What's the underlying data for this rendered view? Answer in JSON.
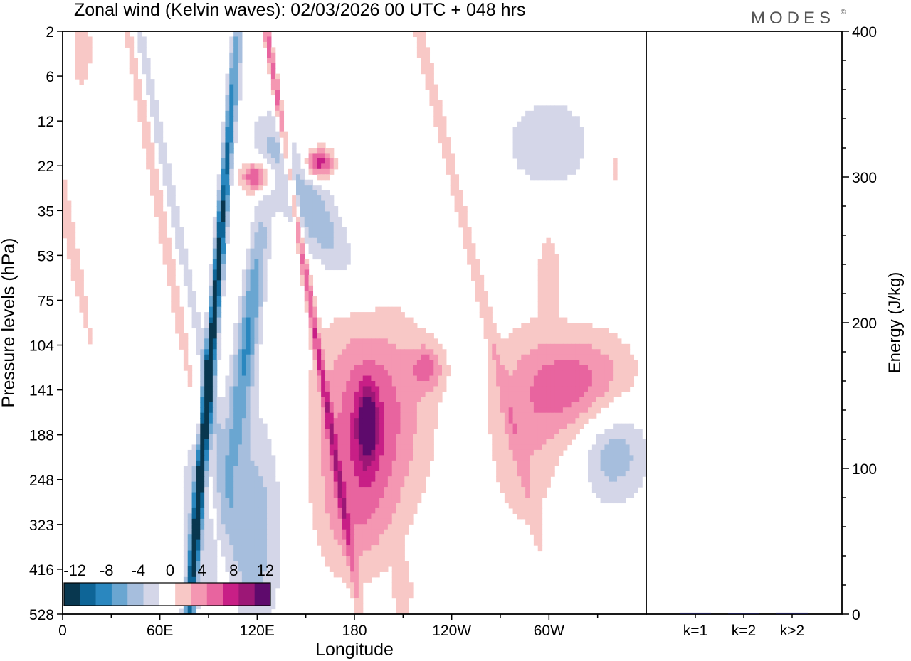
{
  "header": {
    "title": "Zonal wind (Kelvin waves):  02/03/2026  00 UTC  + 048 hrs",
    "logo": "MODES",
    "logo_mark": "©"
  },
  "colors": {
    "neg": [
      "#08374f",
      "#0e6597",
      "#2a87bf",
      "#6aa6d1",
      "#a6bedd",
      "#d4d6e8"
    ],
    "zero": "#ffffff",
    "pos": [
      "#f8c8c6",
      "#f497b2",
      "#e8649f",
      "#c81f86",
      "#9c1776",
      "#5e0a6c"
    ],
    "bar": "#1c1c4a"
  },
  "chart_data": [
    {
      "type": "heatmap",
      "title": "Zonal wind (Kelvin waves)",
      "xlabel": "Longitude",
      "ylabel": "Pressure levels (hPa)",
      "x_ticks": [
        "0",
        "60E",
        "120E",
        "180",
        "120W",
        "60W"
      ],
      "x_tick_values": [
        0,
        60,
        120,
        180,
        240,
        300
      ],
      "xlim": [
        0,
        360
      ],
      "y_ticks": [
        "2",
        "6",
        "12",
        "22",
        "35",
        "53",
        "75",
        "104",
        "141",
        "188",
        "248",
        "323",
        "416",
        "528"
      ],
      "colorbar": {
        "labels": [
          "-12",
          "-8",
          "-4",
          "0",
          "4",
          "8",
          "12"
        ],
        "levels": [
          -14,
          -12,
          -10,
          -8,
          -6,
          -4,
          -2,
          2,
          4,
          6,
          8,
          10,
          12,
          14
        ]
      },
      "features": [
        {
          "name": "Negative maximum",
          "lon": 90,
          "level": "104-141 hPa",
          "value": -14
        },
        {
          "name": "Positive maximum",
          "lon": 155,
          "level": "22 hPa",
          "value": 10
        },
        {
          "name": "Positive maximum",
          "lon": 190,
          "level": "141-188 hPa",
          "value": 10
        },
        {
          "name": "Positive maximum",
          "lon": 320,
          "level": "104-141 hPa",
          "value": 8
        }
      ]
    },
    {
      "type": "bar",
      "ylabel": "Energy (J/kg)",
      "categories": [
        "k=1",
        "k=2",
        "k>2"
      ],
      "values": [
        1,
        0.5,
        1
      ],
      "ylim": [
        0,
        400
      ],
      "y_ticks": [
        "0",
        "100",
        "200",
        "300",
        "400"
      ]
    }
  ]
}
